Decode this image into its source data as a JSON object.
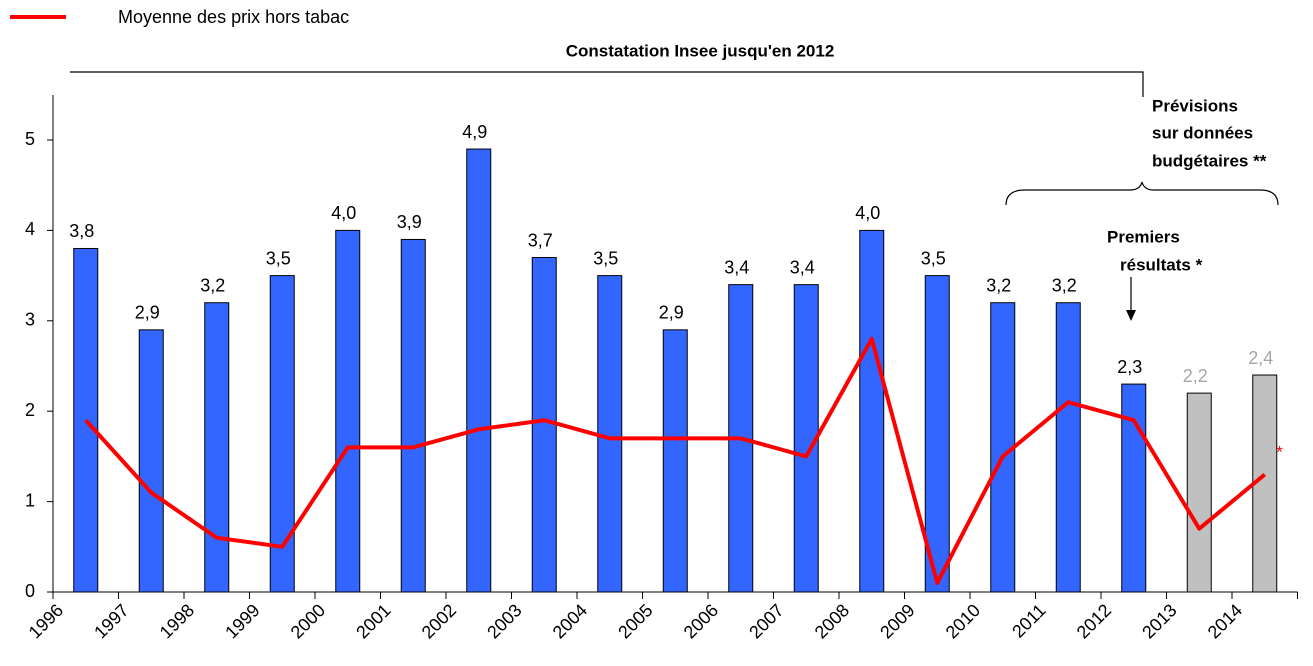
{
  "chart_data": {
    "type": "bar",
    "categories": [
      "1996",
      "1997",
      "1998",
      "1999",
      "2000",
      "2001",
      "2002",
      "2003",
      "2004",
      "2005",
      "2006",
      "2007",
      "2008",
      "2009",
      "2010",
      "2011",
      "2012",
      "2013",
      "2014"
    ],
    "values": [
      3.8,
      2.9,
      3.2,
      3.5,
      4.0,
      3.9,
      4.9,
      3.7,
      3.5,
      2.9,
      3.4,
      3.4,
      4.0,
      3.5,
      3.2,
      3.2,
      2.3,
      2.2,
      2.4
    ],
    "value_labels": [
      "3,8",
      "2,9",
      "3,2",
      "3,5",
      "4,0",
      "3,9",
      "4,9",
      "3,7",
      "3,5",
      "2,9",
      "3,4",
      "3,4",
      "4,0",
      "3,5",
      "3,2",
      "3,2",
      "2,3",
      "2,2",
      "2,4"
    ],
    "colors": [
      "#3366ff",
      "#3366ff",
      "#3366ff",
      "#3366ff",
      "#3366ff",
      "#3366ff",
      "#3366ff",
      "#3366ff",
      "#3366ff",
      "#3366ff",
      "#3366ff",
      "#3366ff",
      "#3366ff",
      "#3366ff",
      "#3366ff",
      "#3366ff",
      "#3366ff",
      "#c0c0c0",
      "#c0c0c0"
    ],
    "value_label_colors": [
      "#000000",
      "#000000",
      "#000000",
      "#000000",
      "#000000",
      "#000000",
      "#000000",
      "#000000",
      "#000000",
      "#000000",
      "#000000",
      "#000000",
      "#000000",
      "#000000",
      "#000000",
      "#000000",
      "#000000",
      "#a6a6a6",
      "#a6a6a6"
    ],
    "series": [
      {
        "name": "Moyenne des prix hors tabac",
        "color": "#ff0000",
        "values": [
          1.9,
          1.1,
          0.6,
          0.5,
          1.6,
          1.6,
          1.8,
          1.9,
          1.7,
          1.7,
          1.7,
          1.5,
          2.8,
          0.1,
          1.5,
          2.1,
          1.9,
          0.7,
          1.3
        ]
      }
    ],
    "ylim": [
      0,
      5
    ],
    "yticks": [
      0,
      1,
      2,
      3,
      4,
      5
    ],
    "annotations": {
      "period": "Constatation Insee jusqu'en 2012",
      "forecast": [
        "Prévisions",
        "sur données",
        "budgétaires **"
      ],
      "first": [
        "Premiers",
        "résultats *"
      ],
      "line_note": "***"
    }
  }
}
